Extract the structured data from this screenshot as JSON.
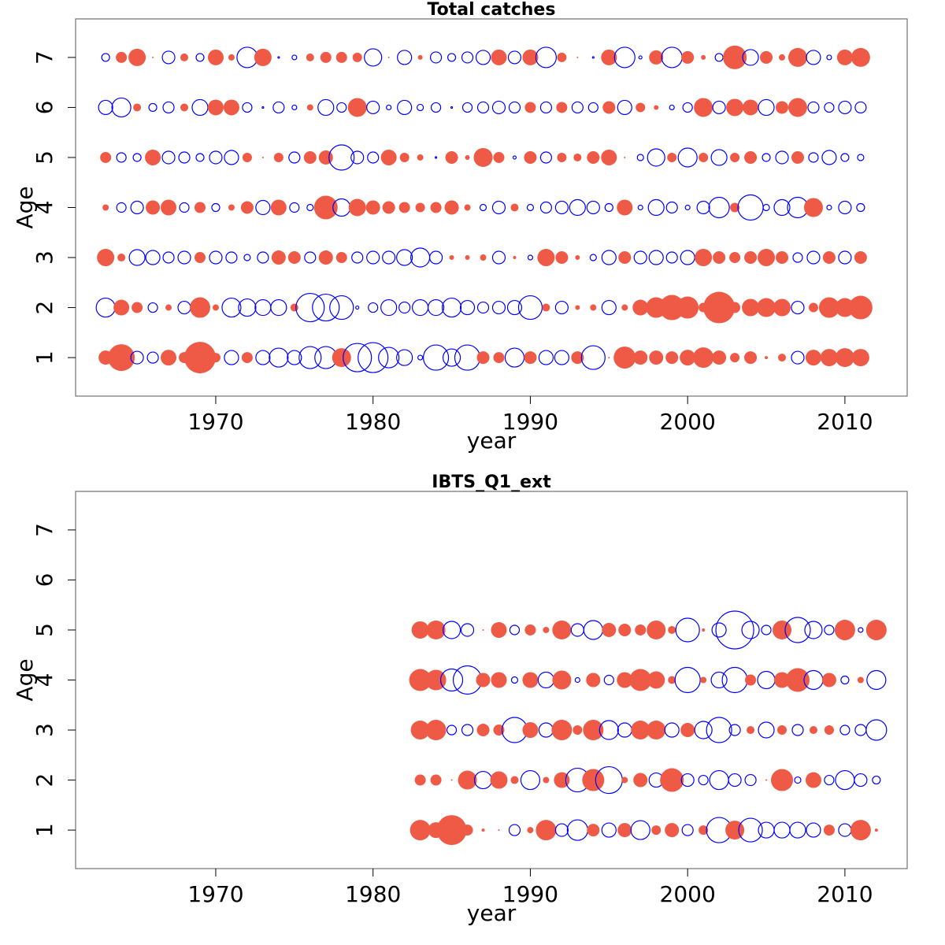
{
  "chart_data": [
    {
      "type": "bubble",
      "title": "Total catches",
      "xlabel": "year",
      "ylabel": "Age",
      "xlim": [
        1961.09,
        2013.96
      ],
      "xticks": [
        1970,
        1980,
        1990,
        2000,
        2010
      ],
      "ylim": [
        0.23,
        7.77
      ],
      "yticks": [
        1,
        2,
        3,
        4,
        5,
        6,
        7
      ],
      "positive_color": "#0000ff",
      "negative_color": "#ee5a45",
      "x": [
        1963,
        1964,
        1965,
        1966,
        1967,
        1968,
        1969,
        1970,
        1971,
        1972,
        1973,
        1974,
        1975,
        1976,
        1977,
        1978,
        1979,
        1980,
        1981,
        1982,
        1983,
        1984,
        1985,
        1986,
        1987,
        1988,
        1989,
        1990,
        1991,
        1992,
        1993,
        1994,
        1995,
        1996,
        1997,
        1998,
        1999,
        2000,
        2001,
        2002,
        2003,
        2004,
        2005,
        2006,
        2007,
        2008,
        2009,
        2010,
        2011
      ],
      "y": [
        1,
        2,
        3,
        4,
        5,
        6,
        7
      ],
      "values": [
        [
          -1.8,
          -3.4,
          1.6,
          1.4,
          -2,
          -1.4,
          -4,
          -1.2,
          1.8,
          -1.4,
          1.8,
          2.4,
          1.8,
          2.8,
          2.8,
          -2.4,
          3.6,
          3.8,
          2.6,
          2,
          0.6,
          3.2,
          2.2,
          3.2,
          -1.6,
          -1.4,
          2.4,
          -1.6,
          1.8,
          1.8,
          -1.6,
          3,
          -0.2,
          -2.8,
          -1.8,
          -1.8,
          -1.6,
          -2,
          -2.6,
          -1.8,
          -1.2,
          -1.6,
          -0.4,
          -1,
          1.6,
          -2,
          -2.2,
          -2.4,
          -2.2
        ],
        [
          2.4,
          -2,
          -1.4,
          1.2,
          -0.8,
          1.6,
          -2.6,
          -0.8,
          2.4,
          2.2,
          2,
          2,
          -1,
          3.6,
          3.4,
          3,
          0.4,
          1.2,
          2,
          1.4,
          2,
          2,
          2.4,
          1.8,
          1.4,
          1.6,
          1.8,
          3,
          -1,
          1.6,
          -0.6,
          -0.8,
          1.8,
          -0.8,
          -2,
          -2.6,
          -3.2,
          -2.8,
          -1.2,
          -4,
          -1.4,
          -2.2,
          -2.4,
          -2.2,
          1.6,
          -1.2,
          -2.6,
          -2.4,
          -3
        ],
        [
          -2.2,
          -1,
          2,
          1.8,
          1.4,
          1.6,
          -1.4,
          1.6,
          1.4,
          0.8,
          1.4,
          -1.8,
          -1.6,
          1.4,
          -1.8,
          -1.4,
          1.4,
          1.6,
          1.6,
          2,
          2.4,
          1.6,
          -0.6,
          -0.6,
          -0.8,
          1.6,
          -0.4,
          0.6,
          -2.2,
          -1.6,
          -0.6,
          0.8,
          1.8,
          -1.6,
          1.6,
          1.8,
          1.4,
          1.8,
          -2.2,
          -1.6,
          -1.4,
          -1.6,
          -2.2,
          -1.6,
          1.2,
          1.6,
          -1.6,
          1.6,
          -1.6
        ],
        [
          -0.8,
          1.2,
          1.6,
          -1.8,
          -2,
          1.2,
          -1.4,
          1,
          -0.8,
          -1.6,
          1.8,
          -2,
          1.2,
          0.8,
          -3,
          2.2,
          -2.2,
          -1.8,
          -1.6,
          -1.4,
          -1.2,
          -1.4,
          -1.8,
          -0.8,
          0.8,
          1.6,
          -1,
          0.8,
          1.4,
          1.6,
          2,
          1.6,
          1,
          -2,
          0.6,
          2,
          1.4,
          0.6,
          1.6,
          2.6,
          -1.2,
          3.2,
          0.8,
          2,
          2.6,
          -2.4,
          0.6,
          1.6,
          1
        ],
        [
          -1.4,
          1.2,
          1,
          -2,
          1.6,
          1.4,
          1,
          1.6,
          1.8,
          -1.2,
          -0.2,
          -1.2,
          1.4,
          -1.6,
          -1.8,
          3.2,
          1.6,
          1.4,
          -2,
          -1.2,
          -0.8,
          0.2,
          -1.6,
          -0.6,
          -2.4,
          -1.4,
          0.4,
          -1.6,
          1.4,
          -1.2,
          -1,
          -1.6,
          -2,
          -0.2,
          0.8,
          2.2,
          -1.2,
          2.4,
          -1.2,
          2,
          -1.2,
          -1.6,
          1,
          1.6,
          -1.6,
          1.2,
          1.8,
          1,
          0.8
        ],
        [
          1.8,
          2.4,
          -1,
          1,
          1.4,
          -1,
          2,
          -2,
          -2,
          1.2,
          0.2,
          1.4,
          0.6,
          -0.8,
          2,
          1.2,
          -2.4,
          1.6,
          0.6,
          1.8,
          0.8,
          1.2,
          0.2,
          1.2,
          1.4,
          1.6,
          1.4,
          -1.4,
          1.4,
          -1.4,
          1.4,
          1.2,
          -1.6,
          1.8,
          -1.2,
          -0.6,
          0.6,
          1.2,
          -2.4,
          1.6,
          -2.2,
          -2,
          2,
          -1.6,
          -2.4,
          1.4,
          1.2,
          1.6,
          1.4
        ],
        [
          1,
          -1.4,
          -2.2,
          -0.2,
          1.6,
          -1,
          1,
          -2,
          -0.8,
          2.6,
          -2.2,
          0.2,
          0.6,
          -1,
          -1.4,
          -1.4,
          -1.2,
          2.2,
          -0.2,
          1.8,
          -0.6,
          1.4,
          1,
          1.4,
          1.8,
          -2,
          1.6,
          -2,
          2.6,
          -1.2,
          -0.2,
          0.2,
          -2,
          2.6,
          0.4,
          -1.8,
          2.6,
          -1.6,
          -0.6,
          1,
          -3,
          2,
          -1.6,
          -0.8,
          -2.4,
          1.8,
          0.6,
          -2,
          -2.4
        ]
      ]
    },
    {
      "type": "bubble",
      "title": "IBTS_Q1_ext",
      "xlabel": "year",
      "ylabel": "Age",
      "xlim": [
        1961.09,
        2013.96
      ],
      "xticks": [
        1970,
        1980,
        1990,
        2000,
        2010
      ],
      "ylim": [
        0.23,
        7.77
      ],
      "yticks": [
        1,
        2,
        3,
        4,
        5,
        6,
        7
      ],
      "positive_color": "#0000ff",
      "negative_color": "#ee5a45",
      "x": [
        1983,
        1984,
        1985,
        1986,
        1987,
        1988,
        1989,
        1990,
        1991,
        1992,
        1993,
        1994,
        1995,
        1996,
        1997,
        1998,
        1999,
        2000,
        2001,
        2002,
        2003,
        2004,
        2005,
        2006,
        2007,
        2008,
        2009,
        2010,
        2011,
        2012
      ],
      "y": [
        1,
        2,
        3,
        4,
        5
      ],
      "values": [
        [
          -2.6,
          -2,
          -3.8,
          -1.4,
          -0.4,
          -0.2,
          1.4,
          -0.8,
          -2.6,
          1.6,
          2.6,
          -1.6,
          1.8,
          -1.8,
          2.4,
          -1.2,
          -1.8,
          1.4,
          -1.2,
          3.2,
          -2.4,
          3,
          2,
          2,
          2,
          1.8,
          -1.4,
          1.6,
          -2.6,
          -0.4
        ],
        [
          -1.4,
          -1.4,
          -0.2,
          -2.4,
          2.2,
          -2.2,
          -1,
          2.4,
          -0.8,
          -2,
          3,
          -2.8,
          3.4,
          -0.8,
          -1.8,
          1.8,
          -3,
          1.6,
          1.2,
          2.4,
          1.6,
          1.4,
          -0.2,
          -2.8,
          0.8,
          -2,
          1.2,
          2.4,
          1.6,
          1
        ],
        [
          -2.4,
          -2.6,
          1.2,
          1.4,
          -1.6,
          -1.4,
          3.2,
          -2,
          1.8,
          -2.6,
          -1.2,
          -2.6,
          2.4,
          1.8,
          -2.4,
          -2.4,
          1.8,
          -1.8,
          2.2,
          3.2,
          1.4,
          -1,
          2,
          -1.2,
          1.4,
          -1,
          -1.2,
          1.2,
          1.4,
          2.6
        ],
        [
          -2.8,
          -2.6,
          2.8,
          3.6,
          -1.8,
          -2,
          0.8,
          -2,
          2,
          -2.4,
          0.6,
          -1.8,
          1.2,
          -2,
          -2.8,
          -2.2,
          -1,
          3.2,
          -0.8,
          2,
          3.2,
          -1.4,
          2.2,
          -2,
          -3,
          2.4,
          -1.8,
          1,
          -0.8,
          2.4
        ],
        [
          -2.2,
          -2.4,
          2.2,
          1.6,
          -0.2,
          -2,
          1.2,
          -1.4,
          -0.8,
          -2.4,
          1.6,
          2.4,
          -1.8,
          -1.6,
          -1.4,
          -2.4,
          -1,
          3,
          -0.4,
          1.8,
          4.8,
          2.2,
          1.2,
          -2.4,
          3.2,
          2.2,
          1.2,
          -2.6,
          0.6,
          -2.6
        ]
      ]
    }
  ]
}
